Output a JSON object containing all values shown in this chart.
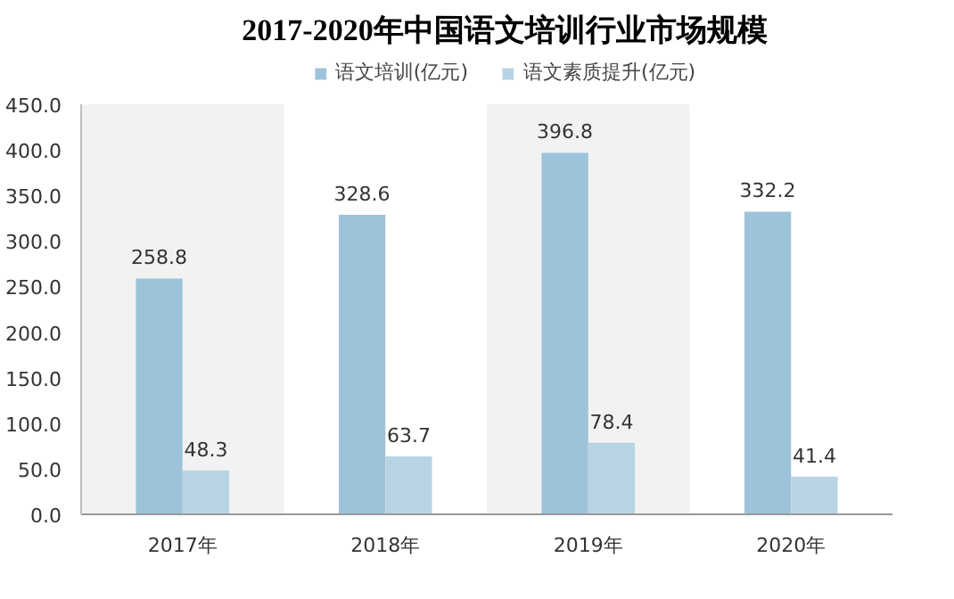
{
  "chart_data": {
    "type": "bar",
    "title": "2017-2020年中国语文培训行业市场规模",
    "categories": [
      "2017年",
      "2018年",
      "2019年",
      "2020年"
    ],
    "series": [
      {
        "name": "语文培训(亿元)",
        "color": "#9dc3da",
        "values": [
          258.8,
          328.6,
          396.8,
          332.2
        ]
      },
      {
        "name": "语文素质提升(亿元)",
        "color": "#b8d4e4",
        "values": [
          48.3,
          63.7,
          78.4,
          41.4
        ]
      }
    ],
    "ylim": [
      0,
      450
    ],
    "yticks": [
      {
        "value": 0,
        "label": "0.0"
      },
      {
        "value": 50,
        "label": "50.0"
      },
      {
        "value": 100,
        "label": "100.0"
      },
      {
        "value": 150,
        "label": "150.0"
      },
      {
        "value": 200,
        "label": "200.0"
      },
      {
        "value": 250,
        "label": "250.0"
      },
      {
        "value": 300,
        "label": "300.0"
      },
      {
        "value": 350,
        "label": "350.0"
      },
      {
        "value": 400,
        "label": "400.0"
      },
      {
        "value": 450,
        "label": "450.0"
      }
    ],
    "bands": [
      {
        "axis": "x",
        "from": "2017年",
        "to": "2017年",
        "color": "#f2f2f2"
      },
      {
        "axis": "x",
        "from": "2019年",
        "to": "2019年",
        "color": "#f2f2f2"
      }
    ],
    "data_labels": true,
    "grid": false,
    "legend": "top"
  }
}
